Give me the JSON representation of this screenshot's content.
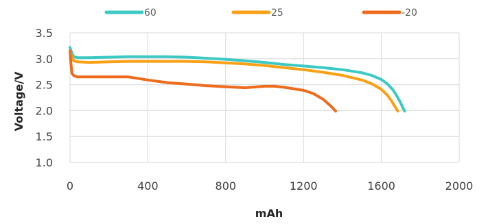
{
  "chart_data": {
    "type": "line",
    "xlabel": "mAh",
    "ylabel": "Voltage/V",
    "xlim": [
      0,
      2000
    ],
    "ylim": [
      1.0,
      3.5
    ],
    "xticks": [
      0,
      400,
      800,
      1200,
      1600,
      2000
    ],
    "yticks": [
      "1.0",
      "1.5",
      "2.0",
      "2.5",
      "3.0",
      "3.5"
    ],
    "grid": true,
    "legend_position": "top",
    "series": [
      {
        "name": "60",
        "color": "#3cc9c4",
        "x": [
          0,
          10,
          20,
          40,
          100,
          200,
          300,
          400,
          500,
          600,
          700,
          800,
          900,
          1000,
          1100,
          1200,
          1300,
          1400,
          1500,
          1550,
          1600,
          1630,
          1660,
          1680,
          1700,
          1710,
          1720
        ],
        "y": [
          3.22,
          3.1,
          3.04,
          3.02,
          3.02,
          3.03,
          3.04,
          3.04,
          3.04,
          3.03,
          3.01,
          2.99,
          2.96,
          2.93,
          2.89,
          2.86,
          2.83,
          2.79,
          2.73,
          2.68,
          2.6,
          2.52,
          2.4,
          2.28,
          2.14,
          2.06,
          1.99
        ]
      },
      {
        "name": "25",
        "color": "#f9a015",
        "x": [
          0,
          10,
          20,
          40,
          100,
          200,
          300,
          400,
          500,
          600,
          700,
          800,
          900,
          1000,
          1100,
          1200,
          1300,
          1400,
          1500,
          1550,
          1600,
          1630,
          1650,
          1670,
          1685
        ],
        "y": [
          3.15,
          3.02,
          2.96,
          2.94,
          2.93,
          2.94,
          2.95,
          2.95,
          2.95,
          2.95,
          2.94,
          2.92,
          2.9,
          2.87,
          2.83,
          2.79,
          2.74,
          2.68,
          2.59,
          2.52,
          2.41,
          2.3,
          2.2,
          2.08,
          1.99
        ]
      },
      {
        "name": "-20",
        "color": "#ee6b1b",
        "x": [
          0,
          5,
          10,
          20,
          40,
          100,
          200,
          300,
          400,
          500,
          600,
          700,
          800,
          850,
          900,
          1000,
          1050,
          1100,
          1150,
          1200,
          1250,
          1300,
          1330,
          1350,
          1365
        ],
        "y": [
          3.15,
          2.9,
          2.72,
          2.67,
          2.65,
          2.65,
          2.65,
          2.65,
          2.59,
          2.54,
          2.51,
          2.48,
          2.46,
          2.45,
          2.44,
          2.47,
          2.47,
          2.45,
          2.42,
          2.39,
          2.33,
          2.22,
          2.12,
          2.05,
          1.99
        ]
      }
    ]
  }
}
